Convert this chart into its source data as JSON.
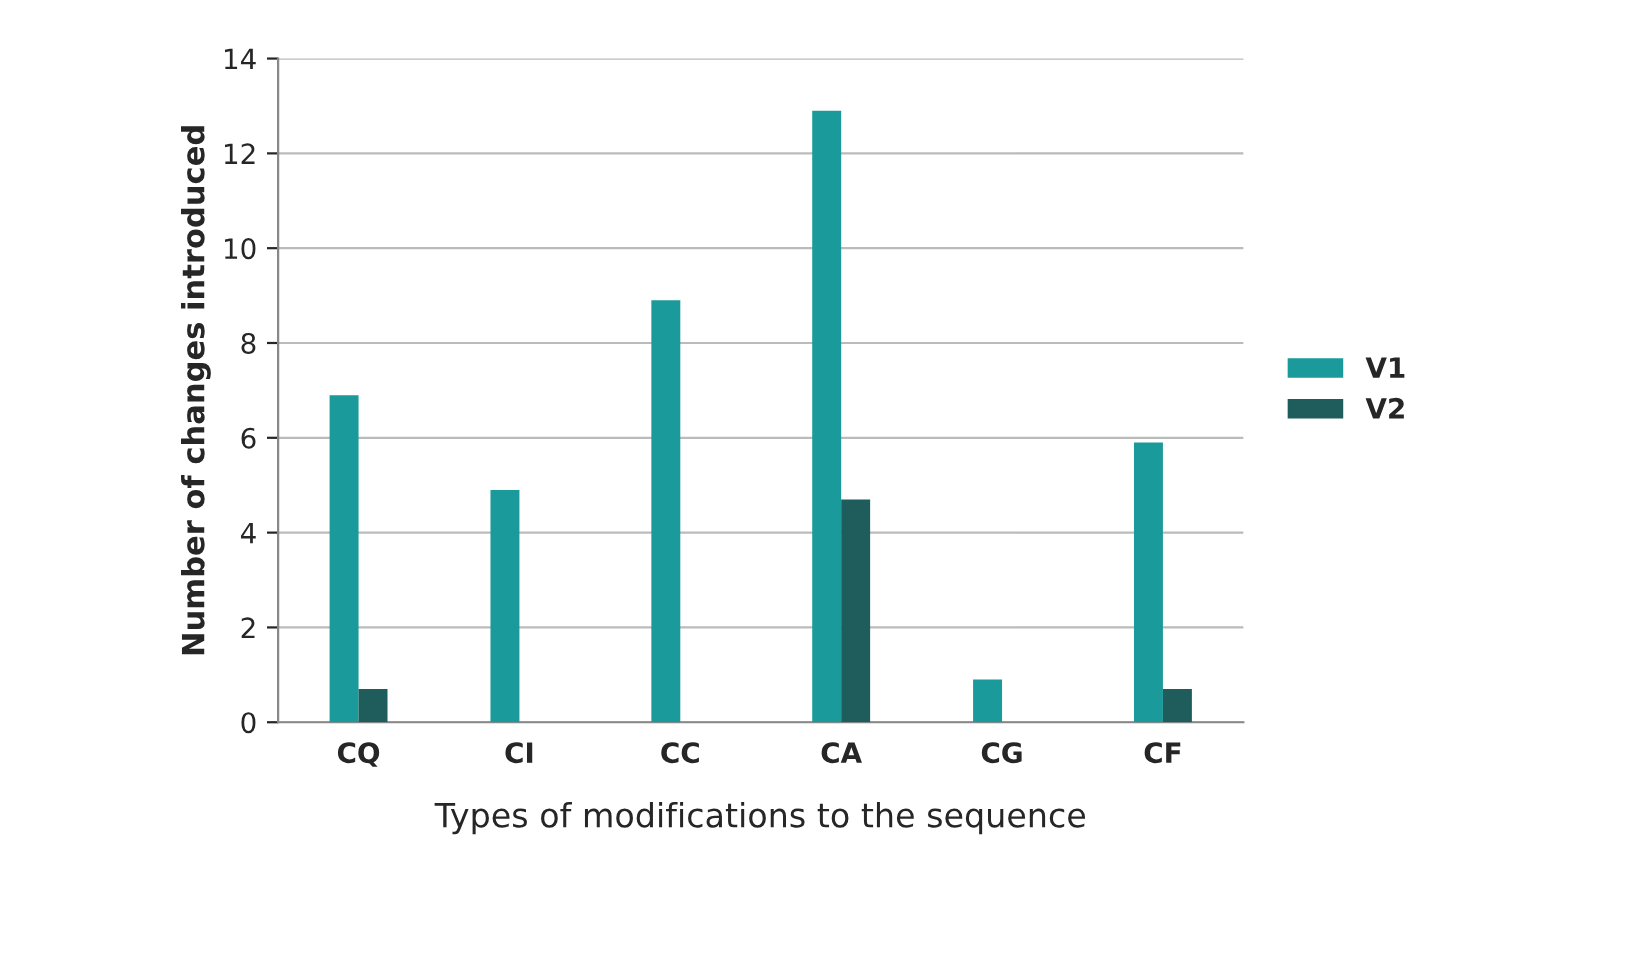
{
  "chart_data": {
    "type": "bar",
    "xlabel": "Types of modifications to the sequence",
    "ylabel": "Number of changes introduced",
    "categories": [
      "CQ",
      "CI",
      "CC",
      "CA",
      "CG",
      "CF"
    ],
    "series": [
      {
        "name": "V1",
        "color": "#1a9a9a",
        "values": [
          6.9,
          4.9,
          8.9,
          12.9,
          0.9,
          5.9
        ]
      },
      {
        "name": "V2",
        "color": "#1f5c5c",
        "values": [
          0.7,
          0,
          0,
          4.7,
          0,
          0.7
        ]
      }
    ],
    "ylim": [
      0,
      14
    ],
    "yticks": [
      0,
      2,
      4,
      6,
      8,
      10,
      12,
      14
    ],
    "grid": "y",
    "legend": "right"
  }
}
